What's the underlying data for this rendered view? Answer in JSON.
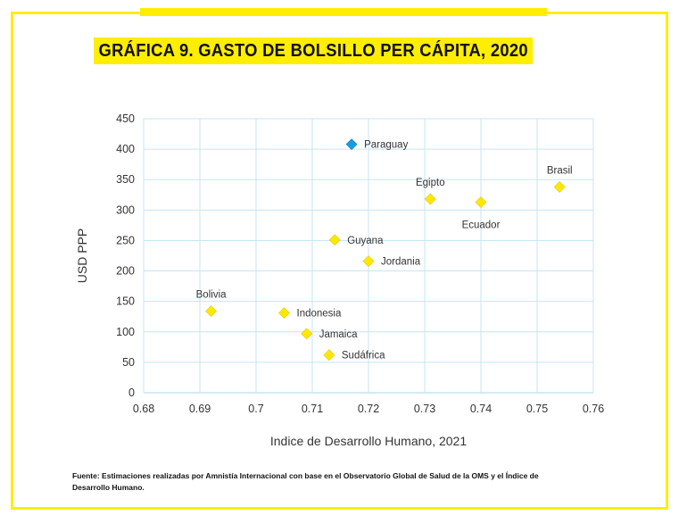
{
  "title": "GRÁFICA 9. GASTO DE BOLSILLO PER CÁPITA, 2020",
  "source": "Fuente: Estimaciones realizadas por Amnistía Internacional con base en el Observatorio Global de Salud de la OMS y el Índice de Desarrollo Humano.",
  "colors": {
    "frame": "#ffee00",
    "highlight": "#1a9be0",
    "points": "#ffe800",
    "grid": "#c7e6f3"
  },
  "chart_data": {
    "type": "scatter",
    "title": "GRÁFICA 9. GASTO DE BOLSILLO PER CÁPITA, 2020",
    "xlabel": "Indice de Desarrollo Humano, 2021",
    "ylabel": "USD PPP",
    "xlim": [
      0.68,
      0.76
    ],
    "ylim": [
      0,
      450
    ],
    "xticks": [
      0.68,
      0.69,
      0.7,
      0.71,
      0.72,
      0.73,
      0.74,
      0.75,
      0.76
    ],
    "xtick_labels": [
      "0.68",
      "0.69",
      "0.7",
      "0.71",
      "0.72",
      "0.73",
      "0.74",
      "0.75",
      "0.76"
    ],
    "yticks": [
      0,
      50,
      100,
      150,
      200,
      250,
      300,
      350,
      400,
      450
    ],
    "grid": true,
    "marker": "diamond",
    "points": [
      {
        "label": "Paraguay",
        "x": 0.717,
        "y": 408,
        "highlight": true,
        "label_pos": "right"
      },
      {
        "label": "Egipto",
        "x": 0.731,
        "y": 318,
        "label_pos": "above"
      },
      {
        "label": "Ecuador",
        "x": 0.74,
        "y": 313,
        "label_pos": "below"
      },
      {
        "label": "Brasil",
        "x": 0.754,
        "y": 338,
        "label_pos": "above"
      },
      {
        "label": "Guyana",
        "x": 0.714,
        "y": 251,
        "label_pos": "right"
      },
      {
        "label": "Jordania",
        "x": 0.72,
        "y": 216,
        "label_pos": "right"
      },
      {
        "label": "Bolivia",
        "x": 0.692,
        "y": 134,
        "label_pos": "above"
      },
      {
        "label": "Indonesia",
        "x": 0.705,
        "y": 131,
        "label_pos": "right"
      },
      {
        "label": "Jamaica",
        "x": 0.709,
        "y": 97,
        "label_pos": "right"
      },
      {
        "label": "Sudáfrica",
        "x": 0.713,
        "y": 62,
        "label_pos": "right"
      }
    ]
  }
}
